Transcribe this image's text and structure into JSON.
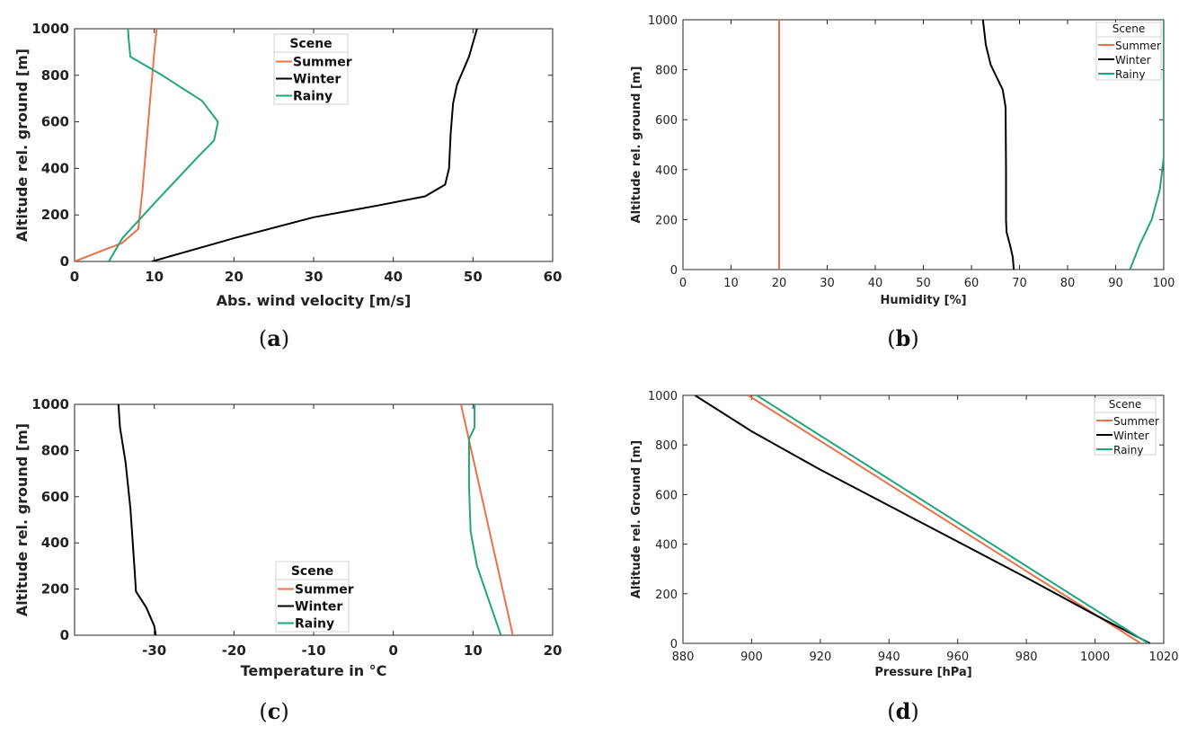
{
  "colors": {
    "Summer": "#E9724C",
    "Winter": "#000000",
    "Rainy": "#22A57A"
  },
  "chart_data": [
    {
      "id": "a",
      "type": "line",
      "caption": "a",
      "xlabel": "Abs. wind velocity [m/s]",
      "ylabel": "Altitude rel. ground [m]",
      "xlim": [
        0,
        60
      ],
      "ylim": [
        0,
        1000
      ],
      "xticks": [
        0,
        10,
        20,
        30,
        40,
        50,
        60
      ],
      "yticks": [
        0,
        200,
        400,
        600,
        800,
        1000
      ],
      "legend_title": "Scene",
      "legend_position": "top-center",
      "series": [
        {
          "name": "Summer",
          "x": [
            0,
            3,
            6,
            8,
            8.5,
            9,
            9.5,
            10,
            10.3
          ],
          "y": [
            0,
            40,
            80,
            140,
            300,
            500,
            700,
            900,
            1000
          ]
        },
        {
          "name": "Winter",
          "x": [
            9.7,
            20,
            30,
            38,
            44,
            46.5,
            47,
            47.2,
            47.5,
            48,
            49.5,
            50.5
          ],
          "y": [
            0,
            100,
            190,
            240,
            280,
            330,
            400,
            550,
            680,
            760,
            880,
            1000
          ]
        },
        {
          "name": "Rainy",
          "x": [
            4.3,
            6,
            10,
            15.5,
            17.5,
            18,
            16,
            11,
            7,
            6.8,
            6.7
          ],
          "y": [
            0,
            100,
            250,
            450,
            520,
            600,
            690,
            800,
            880,
            950,
            1000
          ]
        }
      ]
    },
    {
      "id": "b",
      "type": "line",
      "caption": "b",
      "xlabel": "Humidity [%]",
      "ylabel": "Altitude rel. ground [m]",
      "xlim": [
        0,
        100
      ],
      "ylim": [
        0,
        1000
      ],
      "xticks": [
        0,
        10,
        20,
        30,
        40,
        50,
        60,
        70,
        80,
        90,
        100
      ],
      "yticks": [
        0,
        200,
        400,
        600,
        800,
        1000
      ],
      "legend_title": "Scene",
      "legend_position": "top-right",
      "series": [
        {
          "name": "Summer",
          "x": [
            20,
            20
          ],
          "y": [
            0,
            1000
          ]
        },
        {
          "name": "Winter",
          "x": [
            68.8,
            68.6,
            68,
            67.3,
            67.2,
            67.2,
            67.1,
            66.5,
            64,
            63,
            62.4
          ],
          "y": [
            0,
            50,
            100,
            150,
            200,
            400,
            650,
            720,
            820,
            900,
            1000
          ]
        },
        {
          "name": "Rainy",
          "x": [
            93,
            95,
            97.5,
            99.2,
            100,
            100
          ],
          "y": [
            0,
            100,
            200,
            320,
            450,
            1000
          ]
        }
      ]
    },
    {
      "id": "c",
      "type": "line",
      "caption": "c",
      "xlabel": "Temperature in °C",
      "ylabel": "Altitude rel. ground [m]",
      "xlim": [
        -40,
        20
      ],
      "ylim": [
        0,
        1000
      ],
      "xticks": [
        -30,
        -20,
        -10,
        0,
        10,
        20
      ],
      "yticks": [
        0,
        200,
        400,
        600,
        800,
        1000
      ],
      "legend_title": "Scene",
      "legend_position": "bottom-center",
      "series": [
        {
          "name": "Summer",
          "x": [
            15,
            8.5
          ],
          "y": [
            0,
            1000
          ]
        },
        {
          "name": "Winter",
          "x": [
            -29.8,
            -30,
            -31,
            -32.3,
            -32.5,
            -33,
            -33.6,
            -34.3,
            -34.5
          ],
          "y": [
            0,
            40,
            120,
            190,
            300,
            550,
            750,
            900,
            1000
          ]
        },
        {
          "name": "Rainy",
          "x": [
            13.5,
            12,
            10.5,
            9.7,
            9.5,
            9.5,
            10.2,
            10.2
          ],
          "y": [
            0,
            150,
            300,
            450,
            650,
            850,
            900,
            1000
          ]
        }
      ]
    },
    {
      "id": "d",
      "type": "line",
      "caption": "d",
      "xlabel": "Pressure [hPa]",
      "ylabel": "Altitude rel. Ground [m]",
      "xlim": [
        880,
        1020
      ],
      "ylim": [
        0,
        1000
      ],
      "xticks": [
        880,
        900,
        920,
        940,
        960,
        980,
        1000,
        1020
      ],
      "yticks": [
        0,
        200,
        400,
        600,
        800,
        1000
      ],
      "legend_title": "Scene",
      "legend_position": "top-right",
      "series": [
        {
          "name": "Summer",
          "x": [
            1013.3,
            899
          ],
          "y": [
            0,
            1000
          ]
        },
        {
          "name": "Winter",
          "x": [
            1016,
            1000,
            980,
            960,
            940,
            920,
            900,
            883.5
          ],
          "y": [
            0,
            115,
            265,
            410,
            555,
            700,
            855,
            1000
          ]
        },
        {
          "name": "Rainy",
          "x": [
            1015.5,
            901.5
          ],
          "y": [
            0,
            1000
          ]
        }
      ]
    }
  ]
}
